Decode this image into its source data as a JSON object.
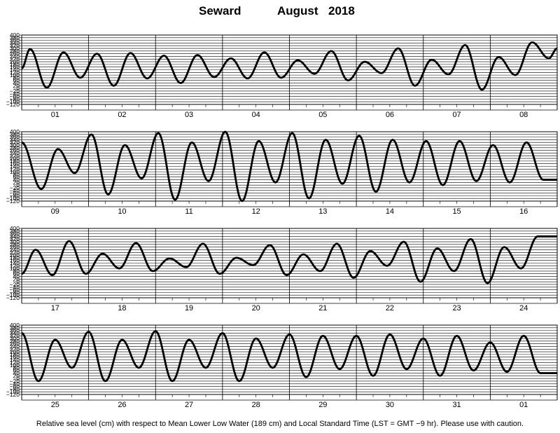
{
  "title": {
    "station": "Seward",
    "month": "August",
    "year": "2018"
  },
  "caption": "Relative sea level (cm) with respect to Mean Lower Low Water (189 cm) and Local Standard Time (LST = GMT −9 hr). Please use with caution.",
  "chart_data": {
    "type": "line",
    "title": "Seward August 2018",
    "xlabel": "",
    "ylabel": "",
    "ylim": [
      -120,
      400
    ],
    "yticks": [
      400,
      380,
      360,
      340,
      320,
      300,
      280,
      260,
      240,
      220,
      200,
      180,
      160,
      140,
      120,
      100,
      80,
      60,
      40,
      20,
      0,
      -20,
      -40,
      -60,
      -80,
      -100,
      -120
    ],
    "grid": true,
    "line_color": "#000000",
    "panels": [
      {
        "day_labels": [
          "01",
          "02",
          "03",
          "04",
          "05",
          "06",
          "07",
          "08"
        ],
        "series": [
          {
            "x_hours": [
              0,
              3,
              9,
              15,
              21,
              27,
              33,
              39,
              45,
              51,
              57,
              63,
              69,
              75,
              81,
              87,
              93,
              99,
              105,
              111,
              117,
              123,
              129,
              135,
              141,
              147,
              153,
              159,
              165,
              171,
              177,
              183,
              189,
              192
            ],
            "values": [
              150,
              295,
              5,
              270,
              80,
              260,
              20,
              265,
              75,
              245,
              40,
              250,
              85,
              225,
              75,
              270,
              80,
              210,
              110,
              280,
              60,
              200,
              115,
              300,
              20,
              215,
              105,
              325,
              -10,
              235,
              100,
              345,
              225,
              300
            ]
          }
        ]
      },
      {
        "day_labels": [
          "09",
          "10",
          "11",
          "12",
          "13",
          "14",
          "15",
          "16"
        ],
        "series": [
          {
            "x_hours": [
              0,
              7,
              13,
              19,
              25,
              31,
              37,
              43,
              49,
              55,
              61,
              67,
              73,
              79,
              85,
              91,
              97,
              103,
              109,
              115,
              121,
              127,
              133,
              139,
              145,
              151,
              157,
              163,
              169,
              175,
              181,
              187,
              192
            ],
            "values": [
              320,
              -30,
              270,
              90,
              380,
              -70,
              300,
              50,
              390,
              -110,
              320,
              30,
              400,
              -120,
              330,
              20,
              390,
              -100,
              340,
              10,
              370,
              -50,
              340,
              20,
              330,
              0,
              330,
              30,
              300,
              20,
              320,
              40,
              40
            ]
          }
        ]
      },
      {
        "day_labels": [
          "17",
          "18",
          "19",
          "20",
          "21",
          "22",
          "23",
          "24"
        ],
        "series": [
          {
            "x_hours": [
              0,
              5,
              11,
              17,
              23,
              29,
              35,
              41,
              47,
              53,
              59,
              65,
              71,
              77,
              83,
              89,
              95,
              101,
              107,
              113,
              119,
              125,
              131,
              137,
              143,
              149,
              155,
              161,
              167,
              173,
              179,
              185,
              191,
              192
            ],
            "values": [
              60,
              240,
              50,
              305,
              60,
              210,
              100,
              290,
              80,
              175,
              110,
              285,
              60,
              180,
              125,
              275,
              50,
              205,
              80,
              285,
              30,
              230,
              120,
              300,
              0,
              250,
              80,
              320,
              -10,
              260,
              100,
              340,
              340,
              340
            ]
          }
        ]
      },
      {
        "day_labels": [
          "25",
          "26",
          "27",
          "28",
          "29",
          "30",
          "31",
          "01"
        ],
        "series": [
          {
            "x_hours": [
              0,
              6,
              12,
              18,
              24,
              30,
              36,
              42,
              48,
              54,
              60,
              66,
              72,
              78,
              84,
              90,
              96,
              102,
              108,
              114,
              120,
              126,
              132,
              138,
              144,
              150,
              156,
              162,
              168,
              174,
              180,
              186,
              192
            ],
            "values": [
              340,
              -20,
              290,
              80,
              350,
              -20,
              290,
              80,
              355,
              -20,
              290,
              80,
              340,
              -20,
              300,
              80,
              330,
              10,
              320,
              70,
              320,
              20,
              330,
              70,
              300,
              20,
              320,
              60,
              270,
              50,
              320,
              40,
              40
            ]
          }
        ]
      }
    ]
  }
}
